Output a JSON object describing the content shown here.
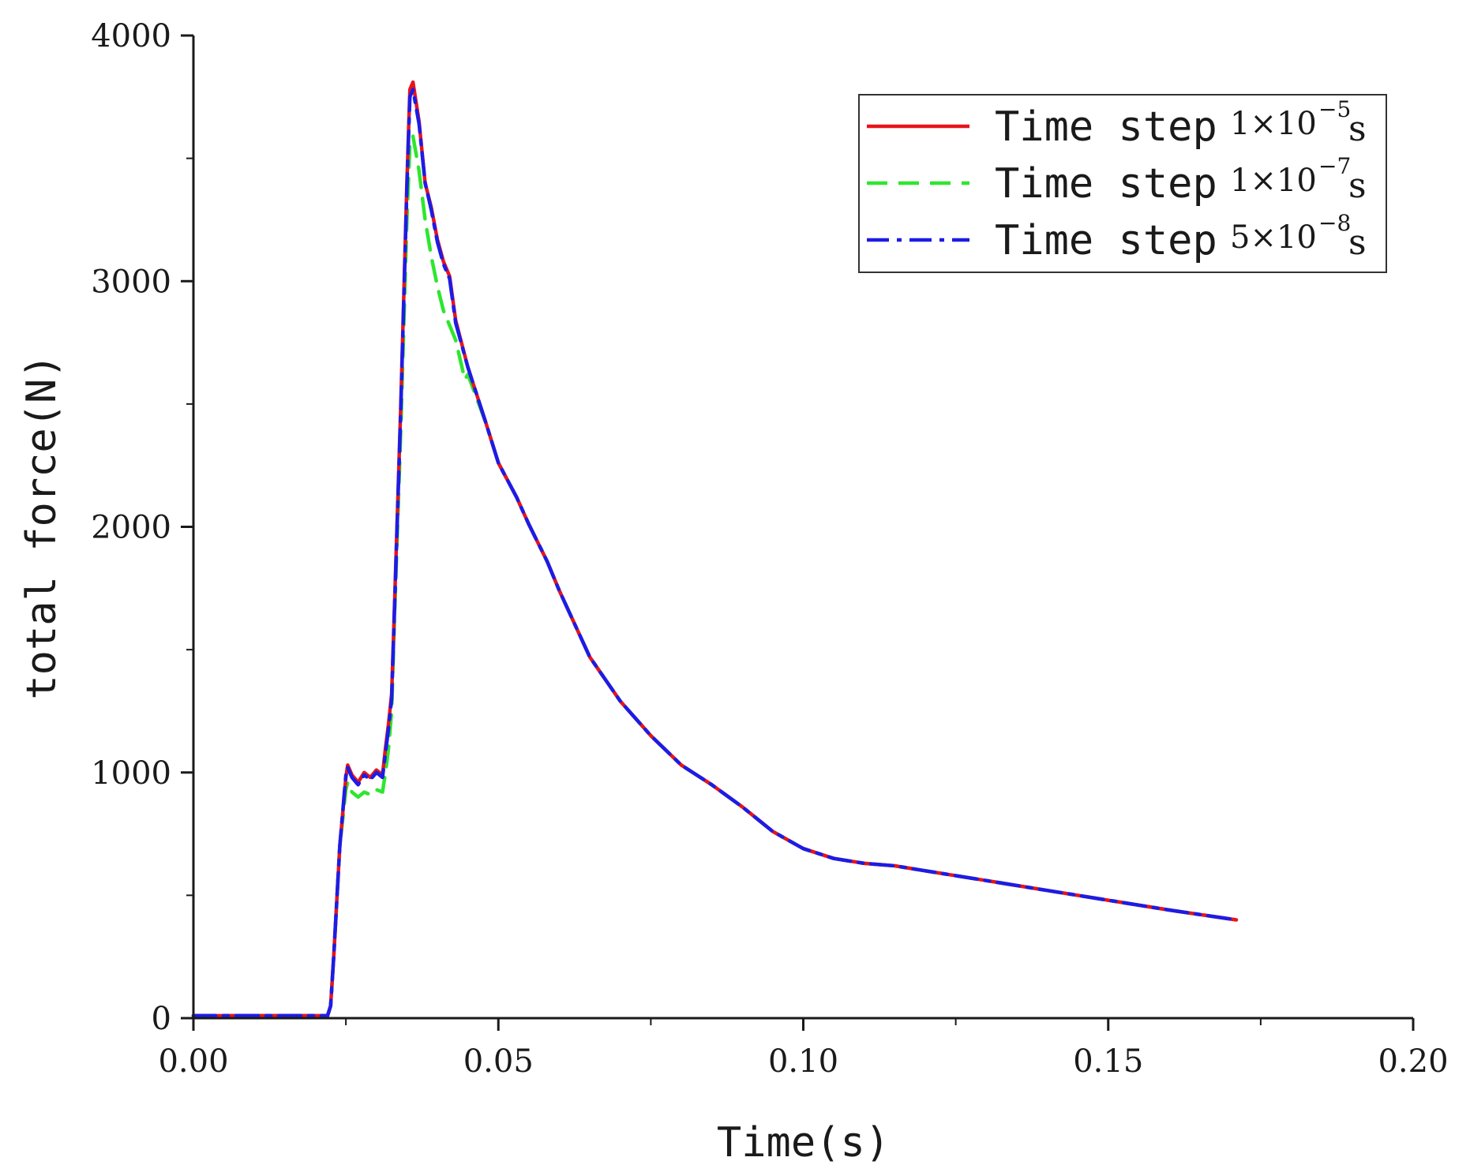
{
  "chart_data": {
    "type": "line",
    "xlabel": "Time(s)",
    "ylabel": "total force(N)",
    "xlim": [
      0.0,
      0.2
    ],
    "ylim": [
      0,
      4000
    ],
    "x_ticks": [
      "0.00",
      "0.05",
      "0.10",
      "0.15",
      "0.20"
    ],
    "y_ticks": [
      "0",
      "1000",
      "2000",
      "3000",
      "4000"
    ],
    "grid": false,
    "legend_position": "top-right",
    "series": [
      {
        "name": "Time step",
        "step_base": "1×10",
        "step_exp": "−5",
        "step_unit": "s",
        "color": "#e8141c",
        "dash": "solid",
        "points": [
          [
            0.0,
            10
          ],
          [
            0.022,
            10
          ],
          [
            0.0225,
            50
          ],
          [
            0.023,
            250
          ],
          [
            0.024,
            700
          ],
          [
            0.025,
            980
          ],
          [
            0.0253,
            1030
          ],
          [
            0.026,
            990
          ],
          [
            0.027,
            960
          ],
          [
            0.028,
            1000
          ],
          [
            0.029,
            980
          ],
          [
            0.03,
            1010
          ],
          [
            0.031,
            990
          ],
          [
            0.0315,
            1100
          ],
          [
            0.032,
            1200
          ],
          [
            0.0325,
            1320
          ],
          [
            0.033,
            1700
          ],
          [
            0.034,
            2500
          ],
          [
            0.035,
            3400
          ],
          [
            0.0355,
            3780
          ],
          [
            0.036,
            3810
          ],
          [
            0.037,
            3650
          ],
          [
            0.038,
            3400
          ],
          [
            0.039,
            3300
          ],
          [
            0.04,
            3170
          ],
          [
            0.041,
            3080
          ],
          [
            0.042,
            3020
          ],
          [
            0.043,
            2840
          ],
          [
            0.045,
            2650
          ],
          [
            0.048,
            2420
          ],
          [
            0.05,
            2260
          ],
          [
            0.053,
            2120
          ],
          [
            0.055,
            2010
          ],
          [
            0.058,
            1860
          ],
          [
            0.06,
            1740
          ],
          [
            0.065,
            1470
          ],
          [
            0.07,
            1290
          ],
          [
            0.075,
            1150
          ],
          [
            0.08,
            1030
          ],
          [
            0.085,
            950
          ],
          [
            0.09,
            860
          ],
          [
            0.095,
            760
          ],
          [
            0.1,
            690
          ],
          [
            0.105,
            650
          ],
          [
            0.11,
            630
          ],
          [
            0.115,
            620
          ],
          [
            0.12,
            600
          ],
          [
            0.13,
            560
          ],
          [
            0.14,
            520
          ],
          [
            0.15,
            480
          ],
          [
            0.16,
            440
          ],
          [
            0.171,
            400
          ]
        ]
      },
      {
        "name": "Time step",
        "step_base": "1×10",
        "step_exp": "−7",
        "step_unit": "s",
        "color": "#2ee62e",
        "dash": "dashed",
        "points": [
          [
            0.0,
            10
          ],
          [
            0.022,
            10
          ],
          [
            0.0225,
            50
          ],
          [
            0.023,
            250
          ],
          [
            0.024,
            700
          ],
          [
            0.025,
            930
          ],
          [
            0.0253,
            960
          ],
          [
            0.026,
            920
          ],
          [
            0.027,
            900
          ],
          [
            0.028,
            920
          ],
          [
            0.029,
            910
          ],
          [
            0.03,
            930
          ],
          [
            0.031,
            920
          ],
          [
            0.0315,
            1000
          ],
          [
            0.032,
            1100
          ],
          [
            0.0325,
            1250
          ],
          [
            0.033,
            1650
          ],
          [
            0.034,
            2400
          ],
          [
            0.035,
            3250
          ],
          [
            0.0355,
            3560
          ],
          [
            0.036,
            3590
          ],
          [
            0.037,
            3450
          ],
          [
            0.038,
            3250
          ],
          [
            0.039,
            3100
          ],
          [
            0.04,
            2980
          ],
          [
            0.041,
            2880
          ],
          [
            0.042,
            2820
          ],
          [
            0.043,
            2760
          ],
          [
            0.0445,
            2600
          ],
          [
            0.045,
            2620
          ],
          [
            0.048,
            2420
          ],
          [
            0.05,
            2260
          ],
          [
            0.053,
            2120
          ],
          [
            0.055,
            2010
          ],
          [
            0.058,
            1860
          ],
          [
            0.06,
            1740
          ],
          [
            0.065,
            1470
          ],
          [
            0.07,
            1290
          ],
          [
            0.075,
            1150
          ],
          [
            0.08,
            1030
          ],
          [
            0.085,
            950
          ],
          [
            0.09,
            860
          ],
          [
            0.095,
            760
          ],
          [
            0.1,
            690
          ],
          [
            0.105,
            650
          ],
          [
            0.11,
            630
          ],
          [
            0.115,
            620
          ],
          [
            0.12,
            600
          ],
          [
            0.13,
            560
          ],
          [
            0.14,
            520
          ],
          [
            0.15,
            480
          ],
          [
            0.16,
            440
          ],
          [
            0.171,
            400
          ]
        ]
      },
      {
        "name": "Time step",
        "step_base": "5×10",
        "step_exp": "−8",
        "step_unit": "s",
        "color": "#1c1ce6",
        "dash": "dashdot",
        "points": [
          [
            0.0,
            10
          ],
          [
            0.022,
            10
          ],
          [
            0.0225,
            50
          ],
          [
            0.023,
            250
          ],
          [
            0.024,
            700
          ],
          [
            0.025,
            990
          ],
          [
            0.0253,
            1020
          ],
          [
            0.026,
            980
          ],
          [
            0.027,
            950
          ],
          [
            0.028,
            990
          ],
          [
            0.029,
            970
          ],
          [
            0.03,
            1000
          ],
          [
            0.031,
            980
          ],
          [
            0.0315,
            1080
          ],
          [
            0.032,
            1180
          ],
          [
            0.0325,
            1300
          ],
          [
            0.033,
            1680
          ],
          [
            0.034,
            2480
          ],
          [
            0.035,
            3380
          ],
          [
            0.0355,
            3750
          ],
          [
            0.036,
            3780
          ],
          [
            0.037,
            3640
          ],
          [
            0.038,
            3400
          ],
          [
            0.039,
            3290
          ],
          [
            0.04,
            3160
          ],
          [
            0.041,
            3070
          ],
          [
            0.042,
            3010
          ],
          [
            0.043,
            2830
          ],
          [
            0.045,
            2650
          ],
          [
            0.048,
            2420
          ],
          [
            0.05,
            2260
          ],
          [
            0.053,
            2120
          ],
          [
            0.055,
            2010
          ],
          [
            0.058,
            1860
          ],
          [
            0.06,
            1740
          ],
          [
            0.065,
            1470
          ],
          [
            0.07,
            1290
          ],
          [
            0.075,
            1150
          ],
          [
            0.08,
            1030
          ],
          [
            0.085,
            950
          ],
          [
            0.09,
            860
          ],
          [
            0.095,
            760
          ],
          [
            0.1,
            690
          ],
          [
            0.105,
            650
          ],
          [
            0.11,
            630
          ],
          [
            0.115,
            620
          ],
          [
            0.12,
            600
          ],
          [
            0.13,
            560
          ],
          [
            0.14,
            520
          ],
          [
            0.15,
            480
          ],
          [
            0.16,
            440
          ],
          [
            0.171,
            400
          ]
        ]
      }
    ]
  }
}
